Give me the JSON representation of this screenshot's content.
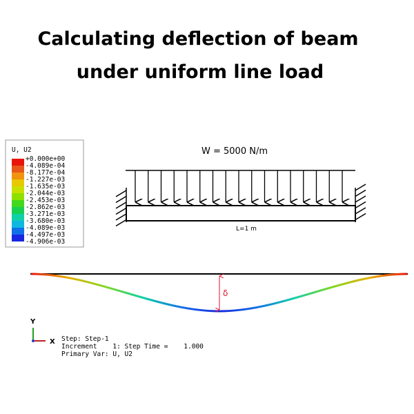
{
  "header": {
    "title_lines": [
      "Calculating deflection of beam",
      "under uniform line load"
    ]
  },
  "legend": {
    "title": "U, U2",
    "labels": [
      "+0.000e+00",
      "-4.089e-04",
      "-8.177e-04",
      "-1.227e-03",
      "-1.635e-03",
      "-2.044e-03",
      "-2.453e-03",
      "-2.862e-03",
      "-3.271e-03",
      "-3.680e-03",
      "-4.089e-03",
      "-4.497e-03",
      "-4.906e-03"
    ],
    "colors": [
      "#e8140c",
      "#e8561a",
      "#f09410",
      "#e8c800",
      "#c8e000",
      "#8ee000",
      "#44d81c",
      "#18d050",
      "#10d0a8",
      "#10b8e0",
      "#1070e8",
      "#1828e0"
    ]
  },
  "beam": {
    "load_label": "W = 5000 N/m",
    "length_label": "L=1 m"
  },
  "deflection": {
    "symbol": "δ"
  },
  "triad": {
    "y_label": "Y",
    "x_label": "X"
  },
  "info": {
    "lines": [
      "Step: Step-1",
      "Increment    1: Step Time =    1.000",
      "Primary Var: U, U2"
    ]
  }
}
